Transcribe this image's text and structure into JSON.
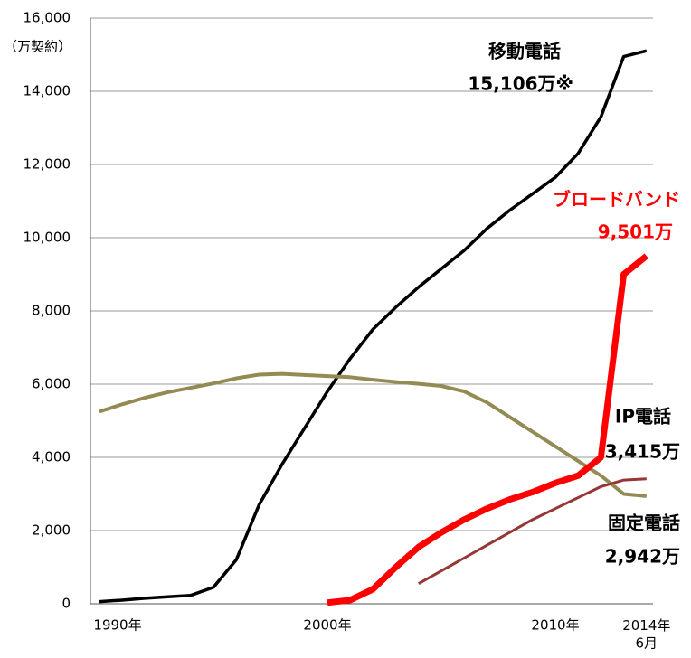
{
  "chart_data": {
    "type": "line",
    "y_label": "（万契約）",
    "categories": [
      "1990年",
      null,
      null,
      null,
      null,
      null,
      null,
      null,
      null,
      null,
      "2000年",
      null,
      null,
      null,
      null,
      null,
      null,
      null,
      null,
      null,
      "2010年",
      null,
      null,
      null,
      "2014年\n6月"
    ],
    "series": [
      {
        "color": "#000000",
        "values": [
          60,
          100,
          150,
          190,
          230,
          450,
          1200,
          2700,
          3800,
          4800,
          5800,
          6700,
          7500,
          8100,
          8650,
          9150,
          9650,
          10250,
          10750,
          11200,
          11650,
          12300,
          13300,
          14950,
          15106
        ]
      },
      {
        "color": "#948a54",
        "values": [
          5250,
          5450,
          5630,
          5780,
          5900,
          6020,
          6160,
          6260,
          6280,
          6250,
          6220,
          6190,
          6120,
          6060,
          6010,
          5950,
          5800,
          5500,
          5100,
          4700,
          4300,
          3900,
          3500,
          3000,
          2942
        ]
      },
      {
        "color": "#ff0000",
        "values": [
          null,
          null,
          null,
          null,
          null,
          null,
          null,
          null,
          null,
          null,
          30,
          100,
          400,
          1000,
          1550,
          1950,
          2300,
          2600,
          2850,
          3050,
          3300,
          3500,
          4000,
          9000,
          9501
        ]
      },
      {
        "color": "#953735",
        "values": [
          null,
          null,
          null,
          null,
          null,
          null,
          null,
          null,
          null,
          null,
          null,
          null,
          null,
          null,
          550,
          900,
          1250,
          1600,
          1950,
          2300,
          2600,
          2900,
          3200,
          3380,
          3415
        ]
      }
    ],
    "annotations": [
      {
        "text": "移動電話",
        "color": "#000000"
      },
      {
        "text": "15,106万※",
        "color": "#000000"
      },
      {
        "text": "ブロードバンド",
        "color": "#ff0000"
      },
      {
        "text": "9,501万",
        "color": "#ff0000"
      },
      {
        "text": "IP電話",
        "color": "#000000"
      },
      {
        "text": "3,415万",
        "color": "#000000"
      },
      {
        "text": "固定電話",
        "color": "#000000"
      },
      {
        "text": "2,942万",
        "color": "#000000"
      }
    ],
    "ylim": [
      0,
      16000
    ],
    "yticks": [
      0,
      {
        "value": 2000,
        "label": "2,000"
      },
      {
        "value": 4000,
        "label": "4,000"
      },
      {
        "value": 6000,
        "label": "6,000"
      },
      {
        "value": 8000,
        "label": "8,000"
      },
      {
        "value": 10000,
        "label": "10,000"
      },
      {
        "value": 12000,
        "label": "12,000"
      },
      {
        "value": 14000,
        "label": "14,000"
      },
      {
        "value": 16000,
        "label": "16,000"
      }
    ],
    "grid": true
  }
}
